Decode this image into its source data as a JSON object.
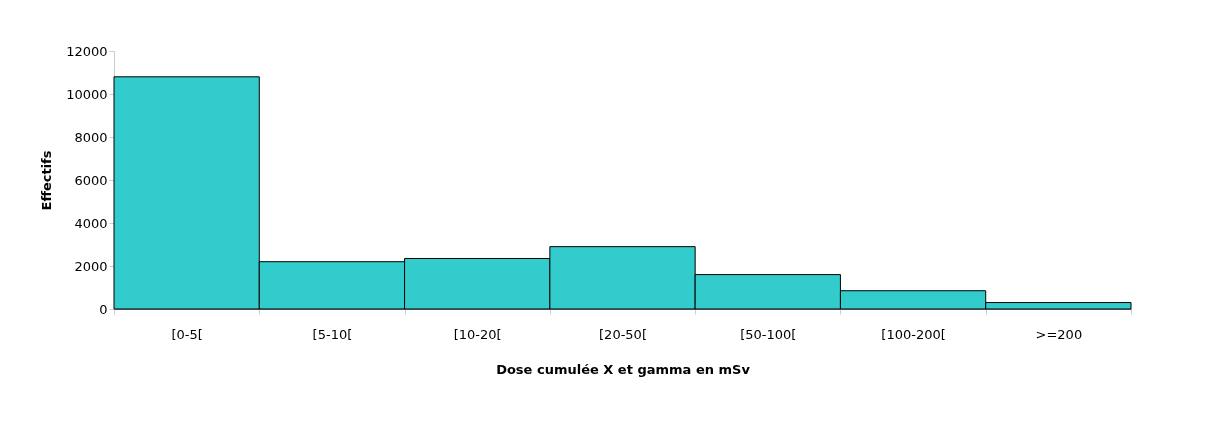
{
  "chart_data": {
    "type": "bar",
    "xlabel": "Dose cumulée X et gamma en mSv",
    "ylabel": "Effectifs",
    "categories": [
      "[0-5[",
      "[5-10[",
      "[10-20[",
      "[20-50[",
      "[50-100[",
      "[100-200[",
      ">=200"
    ],
    "values": [
      10800,
      2200,
      2350,
      2900,
      1600,
      850,
      300
    ],
    "color": "#33cccc",
    "ylim": [
      0,
      12000
    ],
    "yticks": [
      0,
      2000,
      4000,
      6000,
      8000,
      10000,
      12000
    ],
    "grid": false
  }
}
